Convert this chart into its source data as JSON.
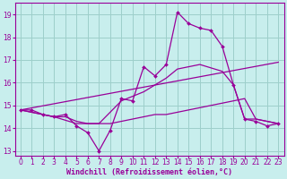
{
  "background_color": "#c8eeed",
  "grid_color": "#9dcfca",
  "line_color": "#990099",
  "xlabel": "Windchill (Refroidissement éolien,°C)",
  "xlabel_fontsize": 6.0,
  "tick_fontsize": 5.5,
  "ylim": [
    12.8,
    19.5
  ],
  "xlim": [
    -0.5,
    23.5
  ],
  "yticks": [
    13,
    14,
    15,
    16,
    17,
    18,
    19
  ],
  "xticks": [
    0,
    1,
    2,
    3,
    4,
    5,
    6,
    7,
    8,
    9,
    10,
    11,
    12,
    13,
    14,
    15,
    16,
    17,
    18,
    19,
    20,
    21,
    22,
    23
  ],
  "line1_x": [
    0,
    1,
    2,
    3,
    4,
    5,
    6,
    7,
    8,
    9,
    10,
    11,
    12,
    13,
    14,
    15,
    16,
    17,
    18,
    19,
    20,
    21,
    22,
    23
  ],
  "line1_y": [
    14.8,
    14.8,
    14.6,
    14.5,
    14.6,
    14.1,
    13.8,
    13.0,
    13.9,
    15.3,
    15.2,
    16.7,
    16.3,
    16.8,
    19.1,
    18.6,
    18.4,
    18.3,
    17.6,
    15.9,
    14.4,
    14.3,
    14.1,
    14.2
  ],
  "line2_x": [
    0,
    2,
    3,
    4,
    5,
    6,
    7,
    8,
    9,
    10,
    11,
    12,
    13,
    14,
    15,
    16,
    17,
    18,
    19,
    20,
    21,
    22,
    23
  ],
  "line2_y": [
    14.8,
    14.6,
    14.5,
    14.5,
    14.3,
    14.2,
    14.2,
    14.2,
    14.3,
    14.4,
    14.5,
    14.6,
    14.6,
    14.7,
    14.8,
    14.9,
    15.0,
    15.1,
    15.2,
    15.3,
    14.4,
    14.3,
    14.2
  ],
  "line3_x": [
    0,
    23
  ],
  "line3_y": [
    14.8,
    16.9
  ],
  "line4_x": [
    0,
    2,
    3,
    5,
    7,
    9,
    11,
    13,
    14,
    16,
    18,
    19,
    20,
    21,
    22,
    23
  ],
  "line4_y": [
    14.8,
    14.6,
    14.5,
    14.2,
    14.2,
    15.2,
    15.6,
    16.2,
    16.6,
    16.8,
    16.5,
    15.9,
    14.4,
    14.4,
    14.3,
    14.2
  ]
}
